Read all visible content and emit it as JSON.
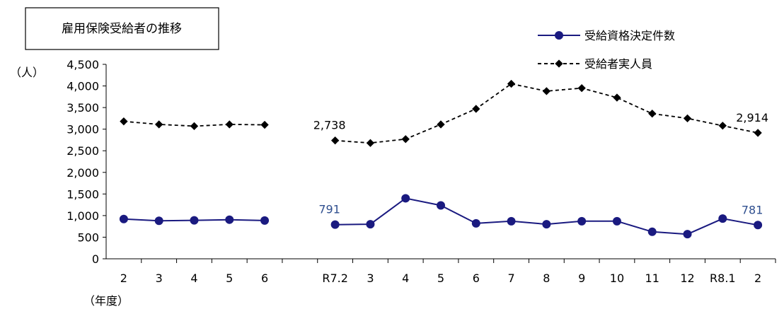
{
  "chart_data": {
    "type": "line",
    "title": "雇用保険受給者の推移",
    "ylabel": "（人）",
    "xlabel": "（年度）",
    "ylim": [
      0,
      4500
    ],
    "ytick_step": 500,
    "ytick_labels": [
      "0",
      "500",
      "1,000",
      "1,500",
      "2,000",
      "2,500",
      "3,000",
      "3,500",
      "4,000",
      "4,500"
    ],
    "categories": [
      "2",
      "3",
      "4",
      "5",
      "6",
      "",
      "R7.2",
      "3",
      "4",
      "5",
      "6",
      "7",
      "8",
      "9",
      "10",
      "11",
      "12",
      "R8.1",
      "2"
    ],
    "grid": false,
    "legend_position": "top-right",
    "series": [
      {
        "name": "受給資格決定件数",
        "color": "#1a1a80",
        "line_style": "solid",
        "marker": "circle",
        "values": [
          920,
          880,
          890,
          905,
          885,
          null,
          791,
          800,
          1400,
          1235,
          820,
          870,
          800,
          870,
          870,
          625,
          570,
          930,
          781
        ]
      },
      {
        "name": "受給者実人員",
        "color": "#000000",
        "line_style": "dashed",
        "marker": "diamond",
        "values": [
          3180,
          3110,
          3070,
          3110,
          3100,
          null,
          2738,
          2680,
          2770,
          3110,
          3470,
          4050,
          3880,
          3950,
          3730,
          3360,
          3250,
          3080,
          2914
        ]
      }
    ],
    "annotations": [
      {
        "series": 0,
        "index": 6,
        "text": "791"
      },
      {
        "series": 0,
        "index": 18,
        "text": "781"
      },
      {
        "series": 1,
        "index": 6,
        "text": "2,738"
      },
      {
        "series": 1,
        "index": 18,
        "text": "2,914"
      }
    ]
  }
}
